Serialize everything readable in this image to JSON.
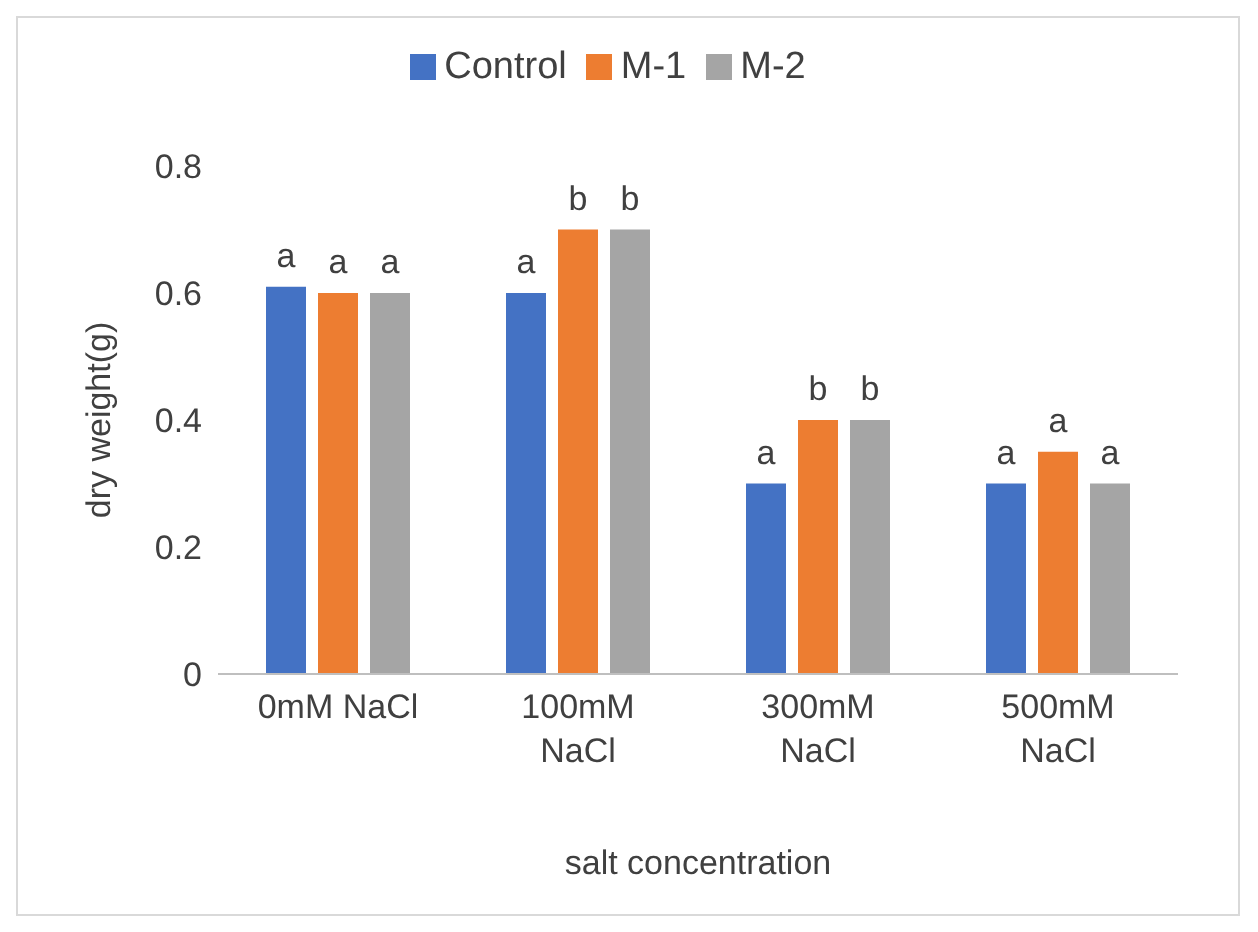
{
  "chart_data": {
    "type": "bar",
    "xlabel": "salt concentration",
    "ylabel": "dry weight(g)",
    "categories": [
      "0mM NaCl",
      "100mM NaCl",
      "300mM NaCl",
      "500mM NaCl"
    ],
    "series": [
      {
        "name": "Control",
        "color": "#4472c4",
        "values": [
          0.61,
          0.6,
          0.3,
          0.3
        ],
        "value_labels": [
          "a",
          "a",
          "a",
          "a"
        ]
      },
      {
        "name": "M-1",
        "color": "#ed7d31",
        "values": [
          0.6,
          0.7,
          0.4,
          0.35
        ],
        "value_labels": [
          "a",
          "b",
          "b",
          "a"
        ]
      },
      {
        "name": "M-2",
        "color": "#a5a5a5",
        "values": [
          0.6,
          0.7,
          0.4,
          0.3
        ],
        "value_labels": [
          "a",
          "b",
          "b",
          "a"
        ]
      }
    ],
    "ylim": [
      0,
      0.8
    ],
    "yticks": [
      0,
      0.2,
      0.4,
      0.6,
      0.8
    ],
    "grid": false,
    "legend": "top"
  }
}
